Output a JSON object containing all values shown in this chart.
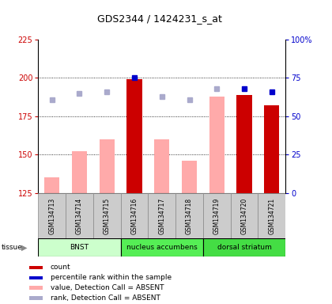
{
  "title": "GDS2344 / 1424231_s_at",
  "samples": [
    "GSM134713",
    "GSM134714",
    "GSM134715",
    "GSM134716",
    "GSM134717",
    "GSM134718",
    "GSM134719",
    "GSM134720",
    "GSM134721"
  ],
  "bar_values": [
    null,
    null,
    null,
    199,
    null,
    null,
    null,
    189,
    182
  ],
  "pink_values": [
    135,
    152,
    160,
    199,
    160,
    146,
    188,
    189,
    182
  ],
  "blue_square_values": [
    186,
    190,
    191,
    200,
    188,
    186,
    193,
    193,
    191
  ],
  "dark_blue_square": [
    false,
    false,
    false,
    true,
    false,
    false,
    false,
    true,
    true
  ],
  "ylim_left": [
    125,
    225
  ],
  "ylim_right": [
    0,
    100
  ],
  "yticks_left": [
    125,
    150,
    175,
    200,
    225
  ],
  "yticks_right": [
    0,
    25,
    50,
    75,
    100
  ],
  "ytick_labels_right": [
    "0",
    "25",
    "50",
    "75",
    "100%"
  ],
  "bar_color_present": "#cc0000",
  "bar_color_absent": "#ffaaaa",
  "blue_square_absent_color": "#aaaacc",
  "blue_square_present_color": "#0000cc",
  "tissue_groups": [
    {
      "label": "BNST",
      "start": 0,
      "end": 3,
      "color": "#ccffcc"
    },
    {
      "label": "nucleus accumbens",
      "start": 3,
      "end": 6,
      "color": "#55ee55"
    },
    {
      "label": "dorsal striatum",
      "start": 6,
      "end": 9,
      "color": "#44dd44"
    }
  ],
  "legend_items": [
    {
      "color": "#cc0000",
      "label": "count"
    },
    {
      "color": "#0000cc",
      "label": "percentile rank within the sample"
    },
    {
      "color": "#ffaaaa",
      "label": "value, Detection Call = ABSENT"
    },
    {
      "color": "#aaaacc",
      "label": "rank, Detection Call = ABSENT"
    }
  ],
  "background_color": "#ffffff",
  "axis_color_left": "#cc0000",
  "axis_color_right": "#0000cc",
  "grid_yticks": [
    150,
    175,
    200
  ]
}
